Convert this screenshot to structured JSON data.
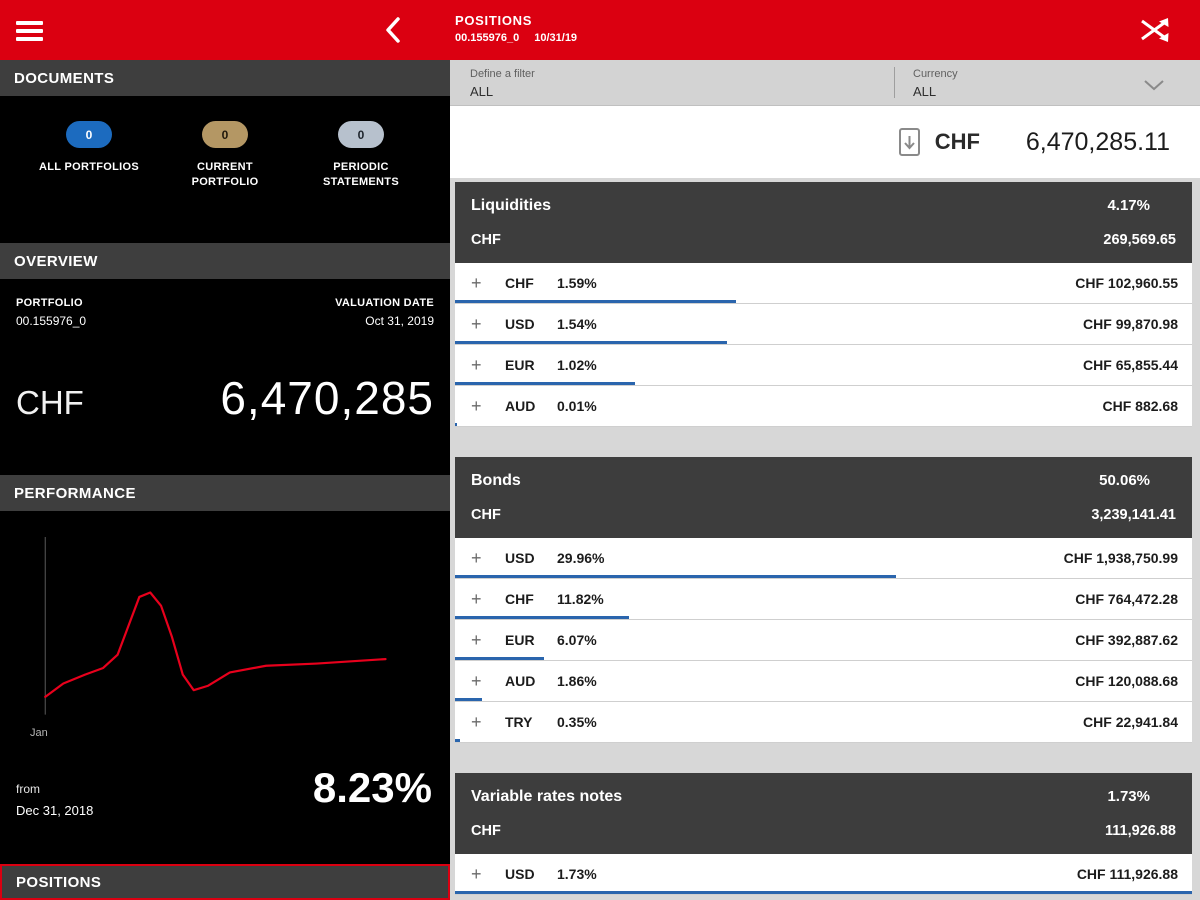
{
  "colors": {
    "brand_red": "#db0011",
    "allocation_bar_blue": "#2a65ad",
    "badge_blue": "#1c6bbf",
    "badge_tan": "#b49764",
    "badge_gray": "#b7c1cd",
    "chart_line_red": "#e8001c"
  },
  "topbar": {
    "title": "POSITIONS",
    "subtitle_account": "00.155976_0",
    "subtitle_date": "10/31/19"
  },
  "sidebar": {
    "documents": {
      "title": "DOCUMENTS",
      "badges": [
        {
          "count": "0",
          "label": "ALL PORTFOLIOS"
        },
        {
          "count": "0",
          "label": "CURRENT PORTFOLIO"
        },
        {
          "count": "0",
          "label": "PERIODIC STATEMENTS"
        }
      ]
    },
    "overview": {
      "title": "OVERVIEW",
      "portfolio_label": "PORTFOLIO",
      "portfolio_id": "00.155976_0",
      "valuation_label": "VALUATION DATE",
      "valuation_date": "Oct 31, 2019",
      "currency": "CHF",
      "total_value": "6,470,285"
    },
    "performance": {
      "title": "PERFORMANCE",
      "from_label": "from",
      "from_date": "Dec 31, 2018",
      "return_value": "8.23%",
      "axis_label": "Jan"
    },
    "positions": {
      "title": "POSITIONS"
    }
  },
  "content": {
    "expand_icon": "+",
    "filter": {
      "label": "Define a filter",
      "value": "ALL"
    },
    "currency_filter": {
      "label": "Currency",
      "value": "ALL"
    },
    "total": {
      "currency": "CHF",
      "amount": "6,470,285.11"
    },
    "sections": [
      {
        "name": "Liquidities",
        "percent": "4.17%",
        "currency": "CHF",
        "amount": "269,569.65",
        "rows": [
          {
            "currency": "CHF",
            "percent": "1.59%",
            "amount": "CHF 102,960.55"
          },
          {
            "currency": "USD",
            "percent": "1.54%",
            "amount": "CHF 99,870.98"
          },
          {
            "currency": "EUR",
            "percent": "1.02%",
            "amount": "CHF 65,855.44"
          },
          {
            "currency": "AUD",
            "percent": "0.01%",
            "amount": "CHF 882.68"
          }
        ]
      },
      {
        "name": "Bonds",
        "percent": "50.06%",
        "currency": "CHF",
        "amount": "3,239,141.41",
        "rows": [
          {
            "currency": "USD",
            "percent": "29.96%",
            "amount": "CHF 1,938,750.99"
          },
          {
            "currency": "CHF",
            "percent": "11.82%",
            "amount": "CHF 764,472.28"
          },
          {
            "currency": "EUR",
            "percent": "6.07%",
            "amount": "CHF 392,887.62"
          },
          {
            "currency": "AUD",
            "percent": "1.86%",
            "amount": "CHF 120,088.68"
          },
          {
            "currency": "TRY",
            "percent": "0.35%",
            "amount": "CHF 22,941.84"
          }
        ]
      },
      {
        "name": "Variable rates notes",
        "percent": "1.73%",
        "currency": "CHF",
        "amount": "111,926.88",
        "rows": [
          {
            "currency": "USD",
            "percent": "1.73%",
            "amount": "CHF 111,926.88"
          }
        ]
      }
    ]
  },
  "chart_data": {
    "type": "line",
    "title": "PERFORMANCE",
    "x_tick_labels": [
      "Jan"
    ],
    "annotation": "8.23% from Dec 31, 2018",
    "legend": "off",
    "grid": "off",
    "points": [
      [
        2,
        72
      ],
      [
        7,
        66
      ],
      [
        13,
        62
      ],
      [
        18,
        59
      ],
      [
        22,
        53
      ],
      [
        25,
        40
      ],
      [
        28,
        27
      ],
      [
        31,
        25
      ],
      [
        34,
        31
      ],
      [
        37,
        45
      ],
      [
        40,
        62
      ],
      [
        43,
        69
      ],
      [
        47,
        67
      ],
      [
        53,
        61
      ],
      [
        63,
        58
      ],
      [
        77,
        57
      ],
      [
        96,
        55
      ]
    ]
  }
}
